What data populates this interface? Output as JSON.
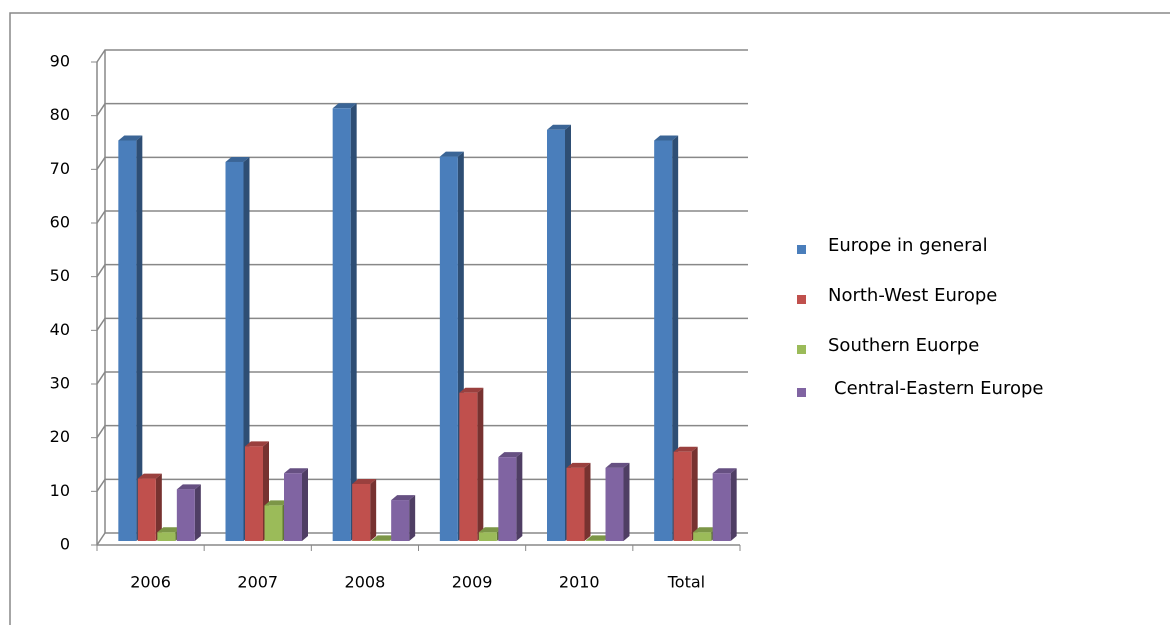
{
  "chart_data": {
    "type": "bar3d",
    "categories": [
      "2006",
      "2007",
      "2008",
      "2009",
      "2010",
      "Total"
    ],
    "series": [
      {
        "name": "Europe in general",
        "color": "#4a7ebb",
        "values": [
          75,
          71,
          81,
          72,
          77,
          75
        ]
      },
      {
        "name": "North-West Europe",
        "color": "#c0504d",
        "values": [
          12,
          18,
          11,
          28,
          14,
          17
        ]
      },
      {
        "name": "Southern Euorpe",
        "color": "#9bbb59",
        "values": [
          2,
          7,
          0.5,
          2,
          0.5,
          2
        ]
      },
      {
        "name": "Central-Eastern Europe",
        "color": "#8064a2",
        "values": [
          10,
          13,
          8,
          16,
          14,
          13
        ]
      }
    ],
    "ylim": [
      0,
      90
    ],
    "yticks": [
      0,
      10,
      20,
      30,
      40,
      50,
      60,
      70,
      80,
      90
    ],
    "grid": true,
    "legend": "right"
  }
}
